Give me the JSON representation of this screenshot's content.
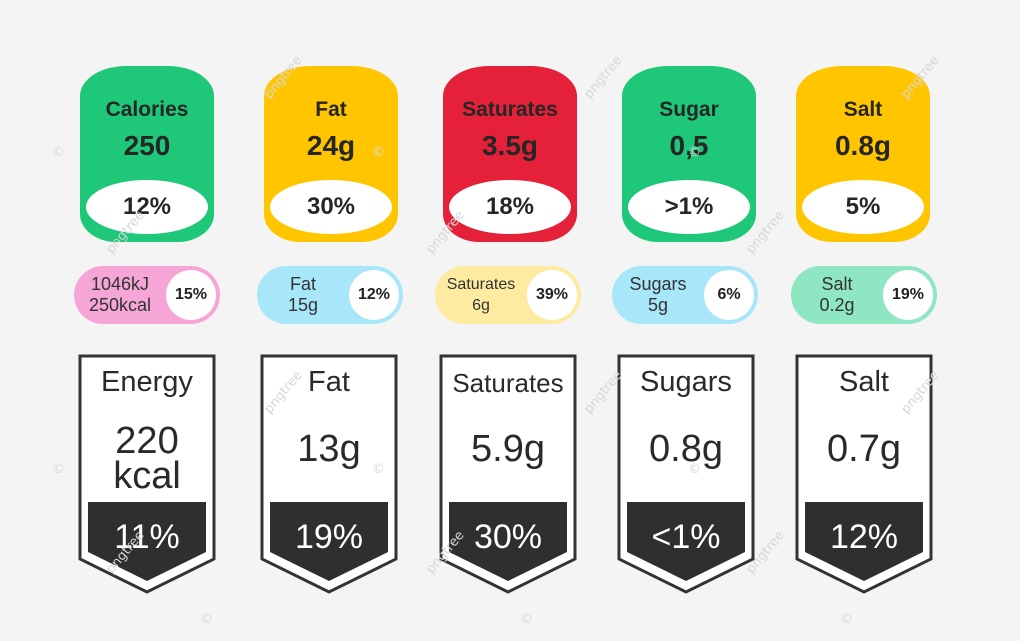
{
  "colors": {
    "green": "#1ec878",
    "yellow": "#ffc600",
    "red": "#e5213a",
    "pink": "#f6a6d6",
    "light_blue": "#a8e6f9",
    "light_yellow": "#fdeba2",
    "mint": "#8ee6c2",
    "dark_band": "#2f2f2f",
    "outline": "#333333"
  },
  "badges": [
    {
      "name": "Calories",
      "value": "250",
      "percent": "12%",
      "color": "#1ec878"
    },
    {
      "name": "Fat",
      "value": "24g",
      "percent": "30%",
      "color": "#ffc600"
    },
    {
      "name": "Saturates",
      "value": "3.5g",
      "percent": "18%",
      "color": "#e5213a"
    },
    {
      "name": "Sugar",
      "value": "0,5",
      "percent": ">1%",
      "color": "#1ec878"
    },
    {
      "name": "Salt",
      "value": "0.8g",
      "percent": "5%",
      "color": "#ffc600"
    }
  ],
  "pills": [
    {
      "line1": "1046kJ",
      "line2": "250kcal",
      "percent": "15%",
      "color": "#f6a6d6"
    },
    {
      "line1": "Fat",
      "line2": "15g",
      "percent": "12%",
      "color": "#a8e6f9"
    },
    {
      "line1": "Saturates",
      "line2": "6g",
      "percent": "39%",
      "color": "#fdeba2"
    },
    {
      "line1": "Sugars",
      "line2": "5g",
      "percent": "6%",
      "color": "#a8e6f9"
    },
    {
      "line1": "Salt",
      "line2": "0.2g",
      "percent": "19%",
      "color": "#8ee6c2"
    }
  ],
  "shields": [
    {
      "name": "Energy",
      "value_line1": "220",
      "value_line2": "kcal",
      "percent": "11%"
    },
    {
      "name": "Fat",
      "value_line1": "13g",
      "value_line2": "",
      "percent": "19%"
    },
    {
      "name": "Saturates",
      "value_line1": "5.9g",
      "value_line2": "",
      "percent": "30%"
    },
    {
      "name": "Sugars",
      "value_line1": "0.8g",
      "value_line2": "",
      "percent": "<1%"
    },
    {
      "name": "Salt",
      "value_line1": "0.7g",
      "value_line2": "",
      "percent": "12%"
    }
  ],
  "watermark": {
    "text": "pngtree",
    "symbol": "©"
  }
}
